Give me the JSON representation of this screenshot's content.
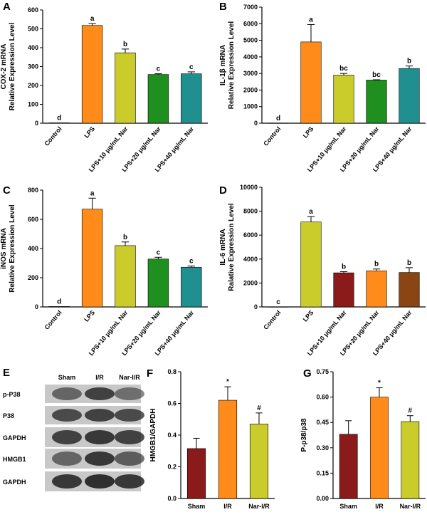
{
  "panel_labels": [
    "A",
    "B",
    "C",
    "D",
    "E",
    "F",
    "G"
  ],
  "chart_data": [
    {
      "id": "A",
      "type": "bar",
      "ylabel_lines": [
        "COX-2 mRNA",
        "Relative Expression Level"
      ],
      "categories": [
        "Control",
        "LPS",
        "LPS+10 μg/mL Nar",
        "LPS+20 μg/mL Nar",
        "LPS+40 μg/mL Nar"
      ],
      "values": [
        2,
        518,
        373,
        258,
        262
      ],
      "errors": [
        0,
        10,
        20,
        4,
        10
      ],
      "labels": [
        "d",
        "a",
        "b",
        "c",
        "c"
      ],
      "ylim": [
        0,
        600
      ],
      "yticks": [
        "0",
        "100",
        "200",
        "300",
        "400",
        "500",
        "600"
      ],
      "colors": [
        "#ffffff",
        "#ff8c1a",
        "#c9cc2a",
        "#1f8f1f",
        "#1f8f8f"
      ]
    },
    {
      "id": "B",
      "type": "bar",
      "ylabel_lines": [
        "IL-1β mRNA",
        "Relative Expression Level"
      ],
      "categories": [
        "Control",
        "LPS",
        "LPS+10 μg/mL Nar",
        "LPS+20 μg/mL Nar",
        "LPS+40 μg/mL Nar"
      ],
      "values": [
        10,
        4900,
        2900,
        2600,
        3300
      ],
      "errors": [
        0,
        1050,
        100,
        20,
        150
      ],
      "labels": [
        "d",
        "a",
        "bc",
        "bc",
        "b"
      ],
      "ylim": [
        0,
        7000
      ],
      "yticks": [
        "0",
        "1000",
        "2000",
        "3000",
        "4000",
        "5000",
        "6000",
        "7000"
      ],
      "colors": [
        "#ffffff",
        "#ff8c1a",
        "#c9cc2a",
        "#1f8f1f",
        "#1f8f8f"
      ]
    },
    {
      "id": "C",
      "type": "bar",
      "ylabel_lines": [
        "iNOS mRNA",
        "Relative Expression Level"
      ],
      "categories": [
        "Control",
        "LPS",
        "LPS+10 μg/mL Nar",
        "LPS+20 μg/mL Nar",
        "LPS+40 μg/mL Nar"
      ],
      "values": [
        3,
        670,
        420,
        328,
        272
      ],
      "errors": [
        0,
        75,
        25,
        12,
        8
      ],
      "labels": [
        "d",
        "a",
        "b",
        "c",
        "c"
      ],
      "ylim": [
        0,
        800
      ],
      "yticks": [
        "0",
        "200",
        "400",
        "600",
        "800"
      ],
      "colors": [
        "#ffffff",
        "#ff8c1a",
        "#c9cc2a",
        "#1f8f1f",
        "#1f8f8f"
      ]
    },
    {
      "id": "D",
      "type": "bar",
      "ylabel_lines": [
        "IL-6 mRNA",
        "Ralative Expression Level"
      ],
      "categories": [
        "Control",
        "LPS",
        "LPS+10 μg/mL Nar",
        "LPS+20 μg/mL Nar",
        "LPS+40 μg/mL Nar"
      ],
      "values": [
        10,
        7100,
        2850,
        3020,
        2880
      ],
      "errors": [
        0,
        450,
        100,
        150,
        400
      ],
      "labels": [
        "c",
        "a",
        "b",
        "b",
        "b"
      ],
      "ylim": [
        0,
        10000
      ],
      "yticks": [
        "0",
        "2000",
        "4000",
        "6000",
        "8000",
        "10000"
      ],
      "colors": [
        "#ffffff",
        "#c9cc2a",
        "#8b1a1a",
        "#ff8c1a",
        "#8b4513"
      ]
    },
    {
      "id": "F",
      "type": "bar",
      "ylabel_lines": [
        "HMGB1/GAPDH"
      ],
      "categories": [
        "Sham",
        "I/R",
        "Nar-I/R"
      ],
      "values": [
        0.315,
        0.62,
        0.47
      ],
      "errors": [
        0.065,
        0.085,
        0.07
      ],
      "labels": [
        "",
        "*",
        "#"
      ],
      "ylim": [
        0,
        0.8
      ],
      "yticks": [
        "0.0",
        "0.2",
        "0.4",
        "0.6",
        "0.8"
      ],
      "colors": [
        "#8b1a1a",
        "#ff8c1a",
        "#c9cc2a"
      ]
    },
    {
      "id": "G",
      "type": "bar",
      "ylabel_lines": [
        "P-p38/p38"
      ],
      "categories": [
        "Sham",
        "I/R",
        "Nar-I/R"
      ],
      "values": [
        0.38,
        0.6,
        0.455
      ],
      "errors": [
        0.08,
        0.055,
        0.035
      ],
      "labels": [
        "",
        "*",
        "#"
      ],
      "ylim": [
        0,
        0.75
      ],
      "yticks": [
        "0.00",
        "0.15",
        "0.30",
        "0.45",
        "0.60",
        "0.75"
      ],
      "colors": [
        "#8b1a1a",
        "#ff8c1a",
        "#c9cc2a"
      ]
    }
  ],
  "blot": {
    "columns": [
      "Sham",
      "I/R",
      "Nar-I/R"
    ],
    "rows": [
      "p-P38",
      "P38",
      "GAPDH",
      "HMGB1",
      "GAPDH"
    ]
  }
}
